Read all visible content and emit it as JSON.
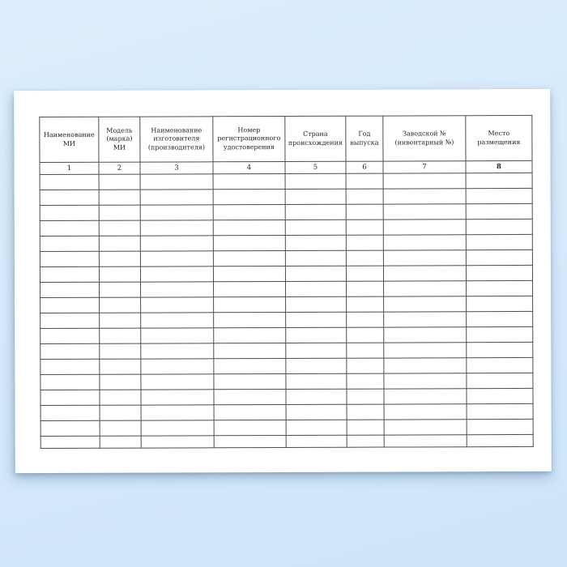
{
  "background": {
    "top_color": "#ddeefd",
    "bottom_color": "#cde4f8",
    "sheet_color": "#ffffff",
    "grid_line_color": "#4d4d4d",
    "text_color": "#232323"
  },
  "document": {
    "table": {
      "headers": [
        "Наименование МИ",
        "Модель (марка) МИ",
        "Наименование изготовителя (производителя)",
        "Номер регистрационного удостоверения",
        "Страна происхождения",
        "Год выпуска",
        "Заводской № (инвентарный №)",
        "Место размещения"
      ],
      "column_numbers": [
        "1",
        "2",
        "3",
        "4",
        "5",
        "6",
        "7",
        "8"
      ],
      "bold_column_numbers": [
        "8"
      ],
      "empty_row_count": 18,
      "cell_values": []
    }
  }
}
